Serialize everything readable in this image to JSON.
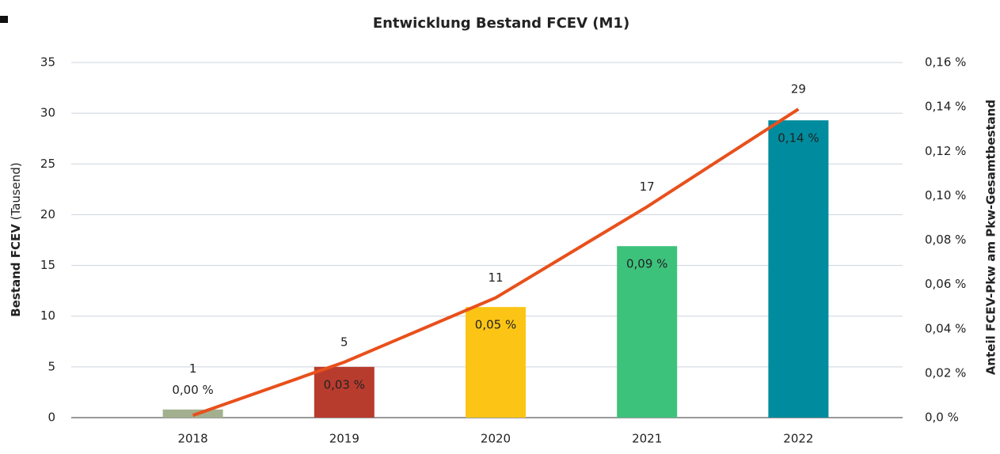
{
  "chart_data": {
    "type": "bar-line",
    "title": "Entwicklung Bestand FCEV (M1)",
    "ylabel": {
      "bold": "Bestand FCEV",
      "normal": "(Tausend)"
    },
    "y2label": "Anteil FCEV-Pkw am Pkw-Gesamtbestand",
    "categories": [
      "2018",
      "2019",
      "2020",
      "2021",
      "2022"
    ],
    "series": [
      {
        "name": "Bestand FCEV",
        "type": "bar",
        "colors": [
          "#a3b08f",
          "#b83c2e",
          "#fcc515",
          "#3dc27c",
          "#008c9e"
        ],
        "values": [
          0.8,
          5.0,
          10.9,
          16.9,
          29.3
        ],
        "value_labels": [
          "1",
          "5",
          "11",
          "17",
          "29"
        ]
      },
      {
        "name": "Anteil FCEV-Pkw",
        "type": "line",
        "axis": "y2",
        "color": "#e8501c",
        "values": [
          0.001,
          0.025,
          0.054,
          0.095,
          0.139
        ],
        "value_labels": [
          "0,00 %",
          "0,03 %",
          "0,05 %",
          "0,09 %",
          "0,14 %"
        ]
      }
    ],
    "ylim": [
      0,
      35
    ],
    "yticks": [
      0,
      5,
      10,
      15,
      20,
      25,
      30,
      35
    ],
    "y2lim": [
      0,
      0.16
    ],
    "y2ticks": [
      {
        "value": 0,
        "label": "0,0 %"
      },
      {
        "value": 0.02,
        "label": "0,02 %"
      },
      {
        "value": 0.04,
        "label": "0,04 %"
      },
      {
        "value": 0.06,
        "label": "0,06 %"
      },
      {
        "value": 0.08,
        "label": "0,08 %"
      },
      {
        "value": 0.1,
        "label": "0,10 %"
      },
      {
        "value": 0.12,
        "label": "0,12 %"
      },
      {
        "value": 0.14,
        "label": "0,14 %"
      },
      {
        "value": 0.16,
        "label": "0,16 %"
      }
    ],
    "grid": true
  }
}
